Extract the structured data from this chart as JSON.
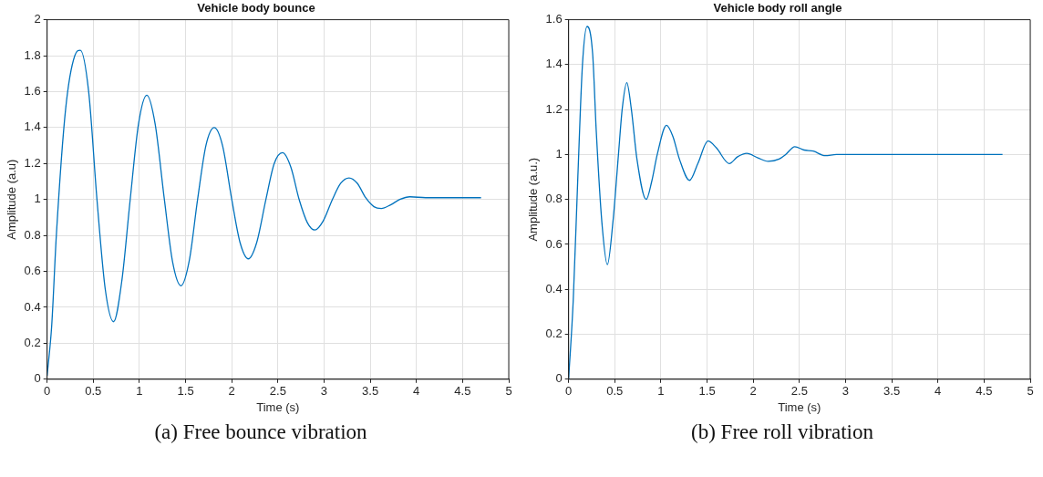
{
  "chart_data": [
    {
      "type": "line",
      "title": "Vehicle body bounce",
      "xlabel": "Time (s)",
      "ylabel": "Amplitude (a.u)",
      "annotations": [
        "(a) Free bounce vibration"
      ],
      "xlim": [
        0,
        5
      ],
      "xticks": [
        0,
        0.5,
        1,
        1.5,
        2,
        2.5,
        3,
        3.5,
        4,
        4.5,
        5
      ],
      "ylim": [
        0,
        2
      ],
      "yticks": [
        0,
        0.2,
        0.4,
        0.6,
        0.8,
        1,
        1.2,
        1.4,
        1.6,
        1.8,
        2
      ],
      "grid": true,
      "legend": false,
      "marker": "none",
      "line_style": "solid",
      "series": [
        {
          "color": "#0072bd",
          "x": [
            0,
            0.05,
            0.1,
            0.2,
            0.3,
            0.36,
            0.45,
            0.54,
            0.63,
            0.72,
            0.81,
            0.9,
            0.99,
            1.08,
            1.17,
            1.27,
            1.36,
            1.45,
            1.54,
            1.63,
            1.72,
            1.81,
            1.9,
            2.0,
            2.09,
            2.18,
            2.27,
            2.37,
            2.46,
            2.55,
            2.64,
            2.73,
            2.82,
            2.9,
            2.99,
            3.09,
            3.18,
            3.27,
            3.36,
            3.45,
            3.54,
            3.62,
            3.72,
            3.82,
            3.93,
            4.1,
            4.4,
            4.7
          ],
          "values": [
            0.02,
            0.3,
            0.8,
            1.5,
            1.8,
            1.83,
            1.6,
            1.0,
            0.5,
            0.32,
            0.55,
            1.0,
            1.42,
            1.58,
            1.42,
            1.0,
            0.65,
            0.52,
            0.66,
            1.0,
            1.3,
            1.4,
            1.3,
            1.0,
            0.76,
            0.67,
            0.76,
            1.0,
            1.2,
            1.26,
            1.18,
            1.0,
            0.87,
            0.83,
            0.88,
            1.0,
            1.09,
            1.12,
            1.09,
            1.01,
            0.96,
            0.95,
            0.97,
            1.0,
            1.015,
            1.01,
            1.01,
            1.01
          ]
        }
      ]
    },
    {
      "type": "line",
      "title": "Vehicle body roll angle",
      "xlabel": "Time (s)",
      "ylabel": "Amplitude (a.u.)",
      "annotations": [
        "(b) Free roll vibration"
      ],
      "xlim": [
        0,
        5
      ],
      "xticks": [
        0,
        0.5,
        1,
        1.5,
        2,
        2.5,
        3,
        3.5,
        4,
        4.5,
        5
      ],
      "ylim": [
        0,
        1.6
      ],
      "yticks": [
        0,
        0.2,
        0.4,
        0.6,
        0.8,
        1,
        1.2,
        1.4,
        1.6
      ],
      "grid": true,
      "legend": false,
      "marker": "none",
      "line_style": "solid",
      "series": [
        {
          "color": "#0072bd",
          "x": [
            0,
            0.05,
            0.1,
            0.15,
            0.2,
            0.26,
            0.3,
            0.36,
            0.42,
            0.48,
            0.54,
            0.58,
            0.63,
            0.68,
            0.74,
            0.84,
            0.9,
            0.96,
            1.06,
            1.13,
            1.2,
            1.31,
            1.4,
            1.51,
            1.6,
            1.74,
            1.83,
            1.93,
            2.05,
            2.16,
            2.28,
            2.35,
            2.45,
            2.55,
            2.65,
            2.78,
            2.9,
            4.7
          ],
          "values": [
            0,
            0.35,
            0.9,
            1.4,
            1.57,
            1.45,
            1.1,
            0.7,
            0.51,
            0.7,
            1.0,
            1.2,
            1.32,
            1.2,
            0.98,
            0.8,
            0.88,
            1.0,
            1.13,
            1.08,
            0.98,
            0.885,
            0.96,
            1.06,
            1.03,
            0.96,
            0.99,
            1.005,
            0.985,
            0.97,
            0.98,
            1.0,
            1.035,
            1.02,
            1.015,
            0.995,
            1.0,
            1.0
          ]
        }
      ]
    }
  ]
}
